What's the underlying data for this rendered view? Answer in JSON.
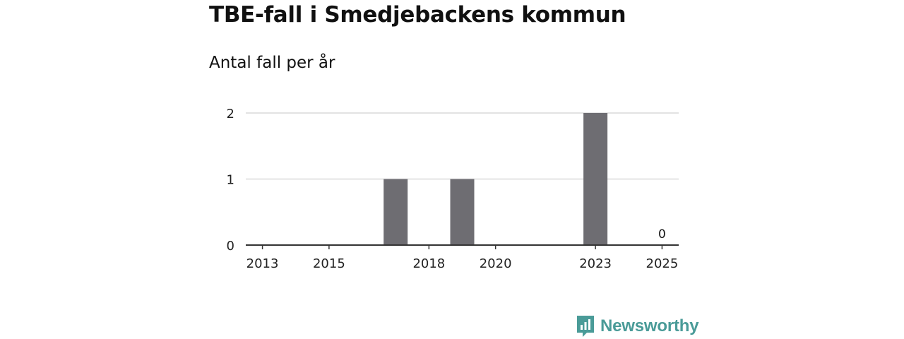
{
  "title": "TBE-fall i Smedjebackens kommun",
  "subtitle": "Antal fall per år",
  "brand": {
    "name": "Newsworthy",
    "color": "#4a9b98",
    "icon": "newsworthy-logo-icon"
  },
  "colors": {
    "bar": "#6e6d72",
    "grid": "#d9d9d9",
    "axis": "#333333"
  },
  "chart_data": {
    "type": "bar",
    "title": "TBE-fall i Smedjebackens kommun",
    "subtitle": "Antal fall per år",
    "categories": [
      "2013",
      "2014",
      "2015",
      "2016",
      "2017",
      "2018",
      "2019",
      "2020",
      "2021",
      "2022",
      "2023",
      "2024",
      "2025"
    ],
    "values": [
      0,
      0,
      0,
      0,
      1,
      0,
      1,
      0,
      0,
      0,
      2,
      0,
      0
    ],
    "xtick_labels": [
      "2013",
      "2015",
      "2018",
      "2020",
      "2023",
      "2025"
    ],
    "yticks": [
      0,
      1,
      2
    ],
    "ylim": [
      0,
      2
    ],
    "data_labels": [
      {
        "category": "2025",
        "text": "0"
      }
    ],
    "grid": true,
    "legend": "none"
  }
}
